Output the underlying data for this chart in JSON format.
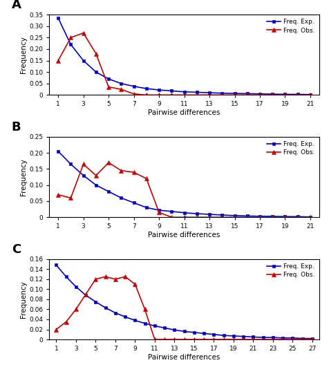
{
  "panel_A": {
    "label": "A",
    "exp_x": [
      1,
      2,
      3,
      4,
      5,
      6,
      7,
      8,
      9,
      10,
      11,
      12,
      13,
      14,
      15,
      16,
      17,
      18,
      19,
      20,
      21
    ],
    "exp_y": [
      0.335,
      0.22,
      0.15,
      0.1,
      0.07,
      0.05,
      0.038,
      0.028,
      0.022,
      0.018,
      0.014,
      0.012,
      0.01,
      0.008,
      0.007,
      0.006,
      0.005,
      0.004,
      0.003,
      0.003,
      0.002
    ],
    "obs_x": [
      1,
      2,
      3,
      4,
      5,
      6,
      7,
      8,
      9,
      10,
      11,
      12,
      13,
      14,
      15,
      16,
      17,
      18,
      19,
      20,
      21
    ],
    "obs_y": [
      0.15,
      0.25,
      0.27,
      0.18,
      0.035,
      0.025,
      0.005,
      0.0,
      0.0,
      0.0,
      0.0,
      0.0,
      0.0,
      0.0,
      0.0,
      0.0,
      0.0,
      0.0,
      0.0,
      0.0,
      0.0
    ],
    "ylim": [
      0,
      0.35
    ],
    "yticks": [
      0,
      0.05,
      0.1,
      0.15,
      0.2,
      0.25,
      0.3,
      0.35
    ],
    "ytick_labels": [
      "0",
      "0.05",
      "0.10",
      "0.15",
      "0.20",
      "0.25",
      "0.30",
      "0.35"
    ],
    "xticks": [
      1,
      3,
      5,
      7,
      9,
      11,
      13,
      15,
      17,
      19,
      21
    ],
    "xlim": [
      0.3,
      21.7
    ]
  },
  "panel_B": {
    "label": "B",
    "exp_x": [
      1,
      2,
      3,
      4,
      5,
      6,
      7,
      8,
      9,
      10,
      11,
      12,
      13,
      14,
      15,
      16,
      17,
      18,
      19,
      20,
      21
    ],
    "exp_y": [
      0.205,
      0.165,
      0.13,
      0.1,
      0.08,
      0.06,
      0.045,
      0.03,
      0.022,
      0.018,
      0.014,
      0.011,
      0.009,
      0.007,
      0.005,
      0.004,
      0.003,
      0.003,
      0.002,
      0.002,
      0.001
    ],
    "obs_x": [
      1,
      2,
      3,
      4,
      5,
      6,
      7,
      8,
      9,
      10,
      11,
      12,
      13,
      14,
      15,
      16,
      17,
      18,
      19,
      20,
      21
    ],
    "obs_y": [
      0.07,
      0.06,
      0.165,
      0.13,
      0.17,
      0.145,
      0.14,
      0.12,
      0.015,
      0.0,
      0.0,
      0.0,
      0.0,
      0.0,
      0.0,
      0.0,
      0.0,
      0.0,
      0.0,
      0.0,
      0.0
    ],
    "ylim": [
      0,
      0.25
    ],
    "yticks": [
      0,
      0.05,
      0.1,
      0.15,
      0.2,
      0.25
    ],
    "ytick_labels": [
      "0",
      "0.05",
      "0.10",
      "0.15",
      "0.20",
      "0.25"
    ],
    "xticks": [
      1,
      3,
      5,
      7,
      9,
      11,
      13,
      15,
      17,
      19,
      21
    ],
    "xlim": [
      0.3,
      21.7
    ]
  },
  "panel_C": {
    "label": "C",
    "exp_x": [
      1,
      2,
      3,
      4,
      5,
      6,
      7,
      8,
      9,
      10,
      11,
      12,
      13,
      14,
      15,
      16,
      17,
      18,
      19,
      20,
      21,
      22,
      23,
      24,
      25,
      26,
      27
    ],
    "exp_y": [
      0.148,
      0.125,
      0.105,
      0.088,
      0.075,
      0.063,
      0.053,
      0.045,
      0.038,
      0.032,
      0.027,
      0.023,
      0.019,
      0.016,
      0.014,
      0.012,
      0.01,
      0.008,
      0.007,
      0.006,
      0.005,
      0.004,
      0.004,
      0.003,
      0.003,
      0.002,
      0.002
    ],
    "obs_x": [
      1,
      2,
      3,
      4,
      5,
      6,
      7,
      8,
      9,
      10,
      11,
      12,
      13,
      14,
      15,
      16,
      17,
      18,
      19,
      20,
      21,
      22,
      23,
      24,
      25,
      26,
      27
    ],
    "obs_y": [
      0.02,
      0.035,
      0.06,
      0.09,
      0.12,
      0.125,
      0.12,
      0.125,
      0.11,
      0.06,
      0.0,
      0.0,
      0.0,
      0.0,
      0.0,
      0.0,
      0.0,
      0.0,
      0.0,
      0.0,
      0.0,
      0.0,
      0.0,
      0.0,
      0.0,
      0.0,
      0.0
    ],
    "ylim": [
      0,
      0.16
    ],
    "yticks": [
      0,
      0.02,
      0.04,
      0.06,
      0.08,
      0.1,
      0.12,
      0.14,
      0.16
    ],
    "ytick_labels": [
      "0",
      "0.02",
      "0.04",
      "0.06",
      "0.08",
      "0.10",
      "0.12",
      "0.14",
      "0.16"
    ],
    "xticks": [
      1,
      3,
      5,
      7,
      9,
      11,
      13,
      15,
      17,
      19,
      21,
      23,
      25,
      27
    ],
    "xlim": [
      0.3,
      27.7
    ]
  },
  "blue_color": "#0000CC",
  "red_color": "#CC0000",
  "legend_exp": "Freq. Exp.",
  "legend_obs": "Freq. Obs.",
  "xlabel": "Pairwise differences",
  "ylabel": "Frequency",
  "bg_color": "#ffffff"
}
